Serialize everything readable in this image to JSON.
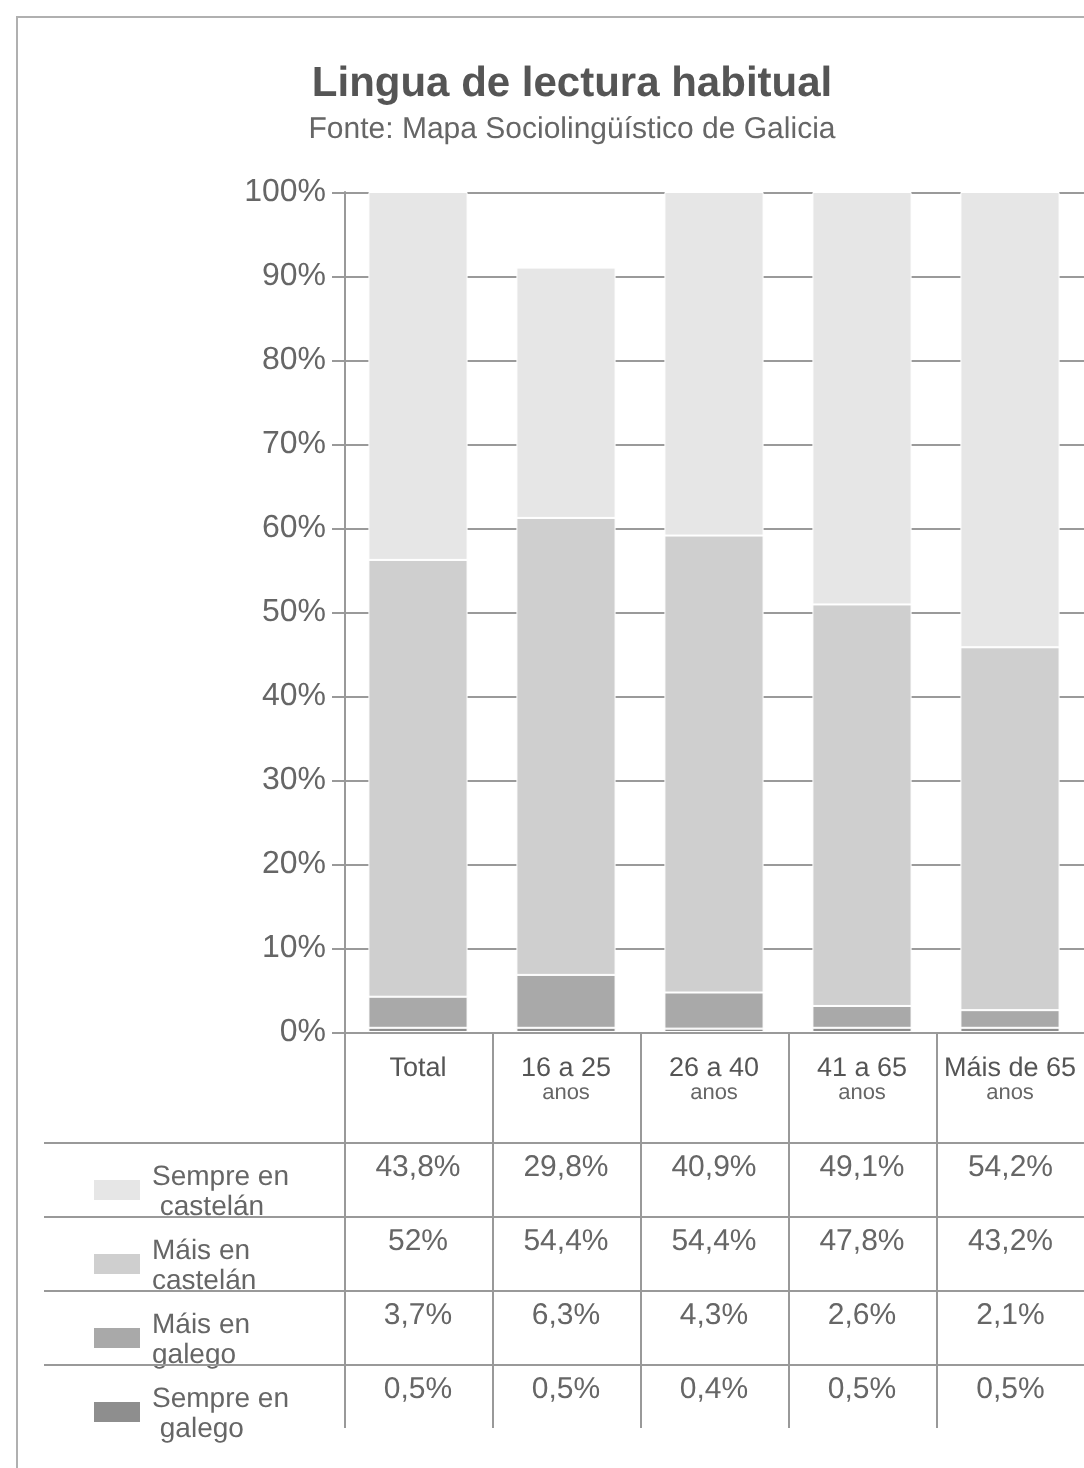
{
  "chart_data": {
    "type": "bar",
    "title": "Lingua de lectura habitual",
    "subtitle": "Fonte: Mapa Sociolingüístico de Galicia",
    "categories": [
      "Total",
      "16 a 25\nanos",
      "26 a 40\nanos",
      "41 a 65\nanos",
      "Máis de 65\nanos"
    ],
    "series": [
      {
        "name": "Sempre en galego",
        "color": "#8e8e8e",
        "values": [
          0.5,
          0.5,
          0.4,
          0.5,
          0.5
        ],
        "value_labels": [
          "0,5%",
          "0,5%",
          "0,4%",
          "0,5%",
          "0,5%"
        ]
      },
      {
        "name": "Máis en galego",
        "color": "#a9a9a9",
        "values": [
          3.7,
          6.3,
          4.3,
          2.6,
          2.1
        ],
        "value_labels": [
          "3,7%",
          "6,3%",
          "4,3%",
          "2,6%",
          "2,1%"
        ]
      },
      {
        "name": "Máis en castelán",
        "color": "#cfcfcf",
        "values": [
          52,
          54.4,
          54.4,
          47.8,
          43.2
        ],
        "value_labels": [
          "52%",
          "54,4%",
          "54,4%",
          "47,8%",
          "43,2%"
        ]
      },
      {
        "name": "Sempre en castelán",
        "color": "#e6e6e6",
        "values": [
          43.8,
          29.8,
          40.9,
          49.1,
          54.2
        ],
        "value_labels": [
          "43,8%",
          "29,8%",
          "40,9%",
          "49,1%",
          "54,2%"
        ]
      }
    ],
    "stacked": true,
    "ylim": [
      0,
      100
    ],
    "yticks": [
      {
        "value": 0,
        "label": "0%"
      },
      {
        "value": 10,
        "label": "10%"
      },
      {
        "value": 20,
        "label": "20%"
      },
      {
        "value": 30,
        "label": "30%"
      },
      {
        "value": 40,
        "label": "40%"
      },
      {
        "value": 50,
        "label": "50%"
      },
      {
        "value": 60,
        "label": "60%"
      },
      {
        "value": 70,
        "label": "70%"
      },
      {
        "value": 80,
        "label": "80%"
      },
      {
        "value": 90,
        "label": "90%"
      },
      {
        "value": 100,
        "label": "100%"
      }
    ],
    "grid": "y",
    "legend": "bottom left"
  }
}
